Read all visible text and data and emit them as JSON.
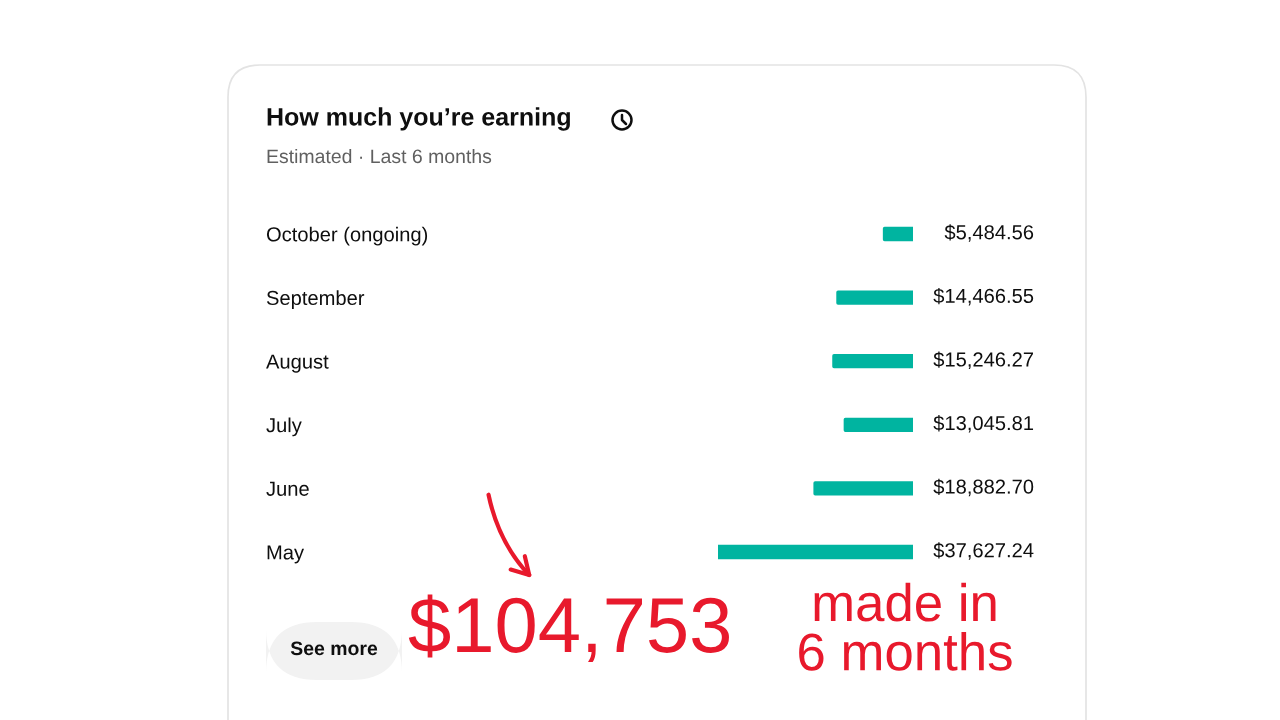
{
  "chart_data": {
    "type": "bar",
    "orientation": "horizontal",
    "title": "How much you’re earning",
    "subtitle": "Estimated · Last 6 months",
    "categories": [
      "October (ongoing)",
      "September",
      "August",
      "July",
      "June",
      "May"
    ],
    "values": [
      5484.56,
      14466.55,
      15246.27,
      13045.81,
      18882.7,
      37627.24
    ],
    "value_labels": [
      "$5,484.56",
      "$14,466.55",
      "$15,246.27",
      "$13,045.81",
      "$18,882.70",
      "$37,627.24"
    ],
    "color": "#00b4a0",
    "annotations": [
      "See more",
      "$104,753",
      "made in\n6 months"
    ]
  }
}
